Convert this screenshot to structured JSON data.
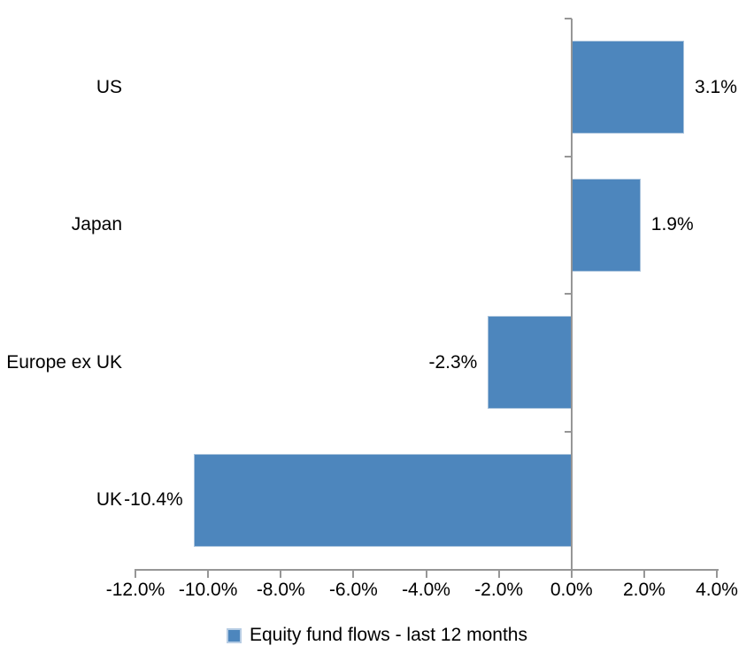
{
  "chart_data": {
    "type": "bar",
    "orientation": "horizontal",
    "categories": [
      "US",
      "Japan",
      "Europe ex UK",
      "UK"
    ],
    "values": [
      3.1,
      1.9,
      -2.3,
      -10.4
    ],
    "data_labels": [
      "3.1%",
      "1.9%",
      "-2.3%",
      "-10.4%"
    ],
    "series_name": "Equity fund flows - last 12 months",
    "x_ticks": [
      "-12.0%",
      "-10.0%",
      "-8.0%",
      "-6.0%",
      "-4.0%",
      "-2.0%",
      "0.0%",
      "2.0%",
      "4.0%"
    ],
    "x_tick_values": [
      -12,
      -10,
      -8,
      -6,
      -4,
      -2,
      0,
      2,
      4
    ],
    "xlim": [
      -12,
      4
    ],
    "grid": "off",
    "legend_position": "bottom-center",
    "title": "",
    "xlabel": "",
    "ylabel": "",
    "colors": {
      "bar_fill": "#4D86BD",
      "bar_border": "#A9C3DC",
      "legend_marker_border": "#B7CDE4",
      "axis": "#969696",
      "text": "#000000",
      "background": "#FFFFFF"
    }
  }
}
